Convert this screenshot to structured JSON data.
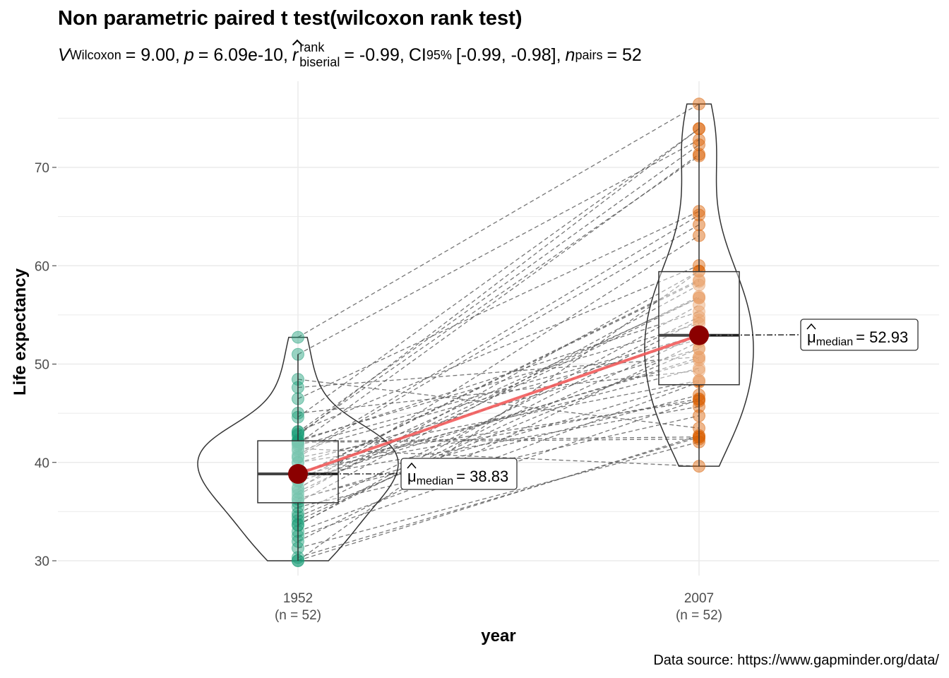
{
  "chart_data": {
    "type": "violin-box-paired",
    "title": "Non parametric paired t test(wilcoxon rank test)",
    "subtitle": {
      "v_label": "V",
      "v_sub": "Wilcoxon",
      "v_val": "= 9.00,",
      "p_label": "p",
      "p_val": "= 6.09e-10,",
      "r_label": "r",
      "r_sup": "rank",
      "r_sub": "biserial",
      "r_val": "= -0.99,",
      "ci_label": "CI",
      "ci_sub": "95%",
      "ci_val": "[-0.99, -0.98],",
      "n_label": "n",
      "n_sub": "pairs",
      "n_val": "= 52"
    },
    "xlabel": "year",
    "ylabel": "Life expectancy",
    "caption": "Data source: https://www.gapminder.org/data/",
    "ylim": [
      26,
      77.5
    ],
    "yticks": [
      30,
      40,
      50,
      60,
      70
    ],
    "groups": [
      {
        "name": "1952",
        "n_label": "(n = 52)",
        "color": "#1B9E77",
        "median": 38.83,
        "median_label": "= 38.83",
        "box": {
          "lower": 30,
          "q1": 35.9,
          "median": 38.83,
          "q3": 42.2,
          "upper": 51.0
        },
        "values": [
          43.077,
          30.015,
          38.223,
          47.622,
          31.975,
          39.031,
          38.523,
          35.463,
          38.092,
          40.715,
          39.143,
          42.111,
          40.477,
          34.812,
          41.893,
          34.482,
          35.928,
          34.078,
          37.003,
          30.0,
          43.149,
          33.609,
          32.5,
          42.27,
          42.138,
          38.48,
          42.723,
          36.681,
          36.256,
          33.685,
          40.543,
          50.986,
          42.873,
          31.286,
          41.725,
          37.444,
          36.324,
          52.724,
          40.0,
          46.471,
          37.278,
          30.331,
          32.978,
          45.009,
          38.635,
          41.407,
          41.215,
          38.596,
          44.6,
          39.978,
          42.038,
          48.451
        ]
      },
      {
        "name": "2007",
        "n_label": "(n = 52)",
        "color": "#D95F02",
        "median": 52.93,
        "median_label": "= 52.93",
        "box": {
          "lower": 39.6,
          "q1": 47.9,
          "median": 52.93,
          "q3": 59.4,
          "upper": 76.4
        },
        "values": [
          72.301,
          42.731,
          56.728,
          50.728,
          52.295,
          49.58,
          50.43,
          44.741,
          50.651,
          65.152,
          46.462,
          55.322,
          48.328,
          54.791,
          71.338,
          51.579,
          58.04,
          52.947,
          56.735,
          59.448,
          60.022,
          56.007,
          46.388,
          54.11,
          42.592,
          45.678,
          73.952,
          59.443,
          48.303,
          54.467,
          64.164,
          72.801,
          71.164,
          42.082,
          52.906,
          56.867,
          46.859,
          76.442,
          46.242,
          65.528,
          63.062,
          42.568,
          48.159,
          49.339,
          58.556,
          39.613,
          52.517,
          58.42,
          73.923,
          51.542,
          42.384,
          43.487
        ]
      }
    ],
    "median_symbol": "μ",
    "median_sub": "median",
    "median_point_color": "#8B0000",
    "median_line_color": "#F25C5C"
  }
}
